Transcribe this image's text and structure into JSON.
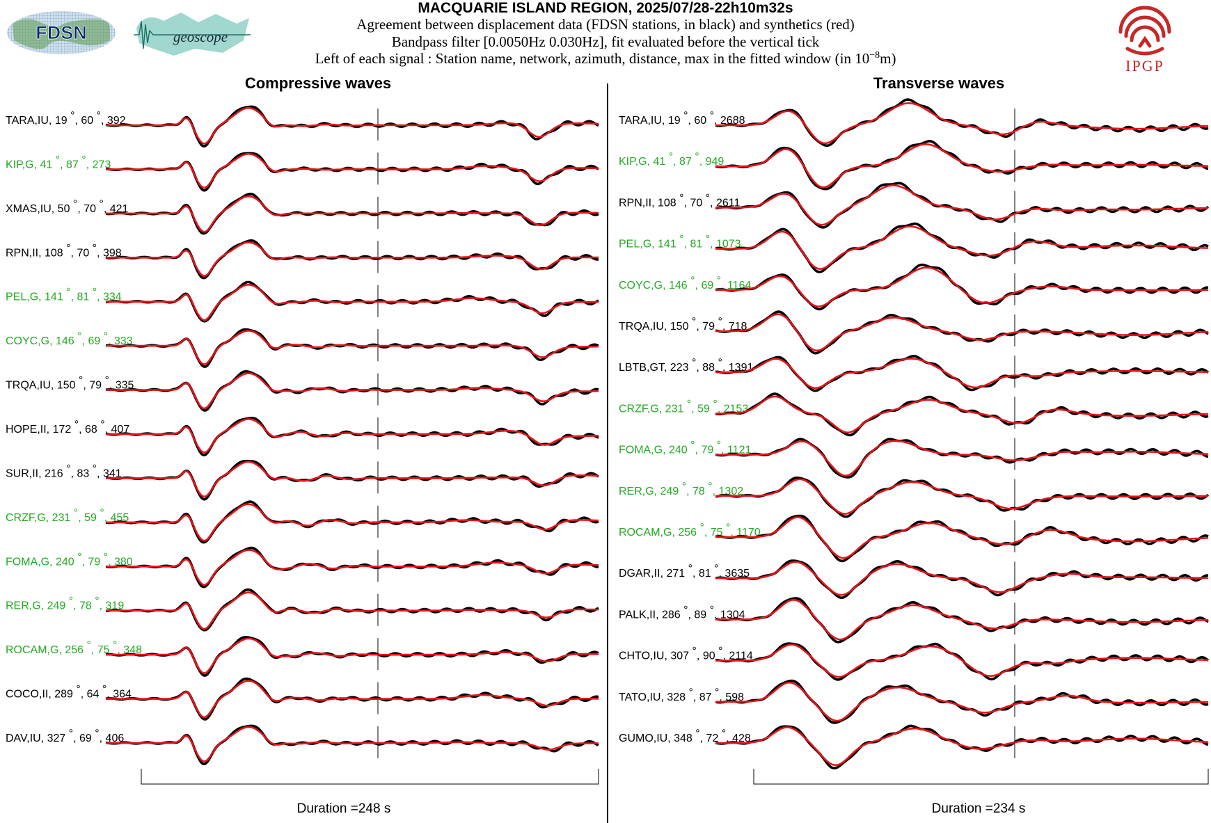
{
  "header": {
    "title": "MACQUARIE ISLAND REGION, 2025/07/28-22h10m32s",
    "line1": "Agreement between displacement data (FDSN stations, in black) and synthetics (red)",
    "line2": "Bandpass filter [0.0050Hz 0.030Hz], fit evaluated before the vertical tick",
    "line3_prefix": "Left of each signal : Station name, network, azimuth, distance, max in the fitted window (in 10",
    "line3_exp": "−8",
    "line3_suffix": "m)",
    "logos": {
      "fdsn_text": "FDSN",
      "geoscope_text": "geoscope",
      "ipgp_text": "IPGP"
    }
  },
  "colors": {
    "data": "#000000",
    "synthetic": "#e8141a",
    "green_station": "#22aa22",
    "ipgp": "#c62828"
  },
  "chart_data": [
    {
      "type": "line",
      "title": "Compressive waves",
      "duration_label": "Duration =248 s",
      "traces": [
        {
          "station": "TARA,IU",
          "azimuth": 19,
          "distance": 60,
          "max": 392,
          "green": false
        },
        {
          "station": "KIP,G",
          "azimuth": 41,
          "distance": 87,
          "max": 273,
          "green": true
        },
        {
          "station": "XMAS,IU",
          "azimuth": 50,
          "distance": 70,
          "max": 421,
          "green": false
        },
        {
          "station": "RPN,II",
          "azimuth": 108,
          "distance": 70,
          "max": 398,
          "green": false
        },
        {
          "station": "PEL,G",
          "azimuth": 141,
          "distance": 81,
          "max": 334,
          "green": true
        },
        {
          "station": "COYC,G",
          "azimuth": 146,
          "distance": 69,
          "max": 333,
          "green": true
        },
        {
          "station": "TRQA,IU",
          "azimuth": 150,
          "distance": 79,
          "max": 335,
          "green": false
        },
        {
          "station": "HOPE,II",
          "azimuth": 172,
          "distance": 68,
          "max": 407,
          "green": false
        },
        {
          "station": "SUR,II",
          "azimuth": 216,
          "distance": 83,
          "max": 341,
          "green": false
        },
        {
          "station": "CRZF,G",
          "azimuth": 231,
          "distance": 59,
          "max": 455,
          "green": true
        },
        {
          "station": "FOMA,G",
          "azimuth": 240,
          "distance": 79,
          "max": 380,
          "green": true
        },
        {
          "station": "RER,G",
          "azimuth": 249,
          "distance": 78,
          "max": 319,
          "green": true
        },
        {
          "station": "ROCAM,G",
          "azimuth": 256,
          "distance": 75,
          "max": 348,
          "green": true
        },
        {
          "station": "COCO,II",
          "azimuth": 289,
          "distance": 64,
          "max": 364,
          "green": false
        },
        {
          "station": "DAV,IU",
          "azimuth": 327,
          "distance": 69,
          "max": 406,
          "green": false
        }
      ]
    },
    {
      "type": "line",
      "title": "Transverse waves",
      "duration_label": "Duration =234 s",
      "traces": [
        {
          "station": "TARA,IU",
          "azimuth": 19,
          "distance": 60,
          "max": 2688,
          "green": false
        },
        {
          "station": "KIP,G",
          "azimuth": 41,
          "distance": 87,
          "max": 949,
          "green": true
        },
        {
          "station": "RPN,II",
          "azimuth": 108,
          "distance": 70,
          "max": 2611,
          "green": false
        },
        {
          "station": "PEL,G",
          "azimuth": 141,
          "distance": 81,
          "max": 1073,
          "green": true
        },
        {
          "station": "COYC,G",
          "azimuth": 146,
          "distance": 69,
          "max": 1164,
          "green": true
        },
        {
          "station": "TRQA,IU",
          "azimuth": 150,
          "distance": 79,
          "max": 718,
          "green": false
        },
        {
          "station": "LBTB,GT",
          "azimuth": 223,
          "distance": 88,
          "max": 1391,
          "green": false
        },
        {
          "station": "CRZF,G",
          "azimuth": 231,
          "distance": 59,
          "max": 2153,
          "green": true
        },
        {
          "station": "FOMA,G",
          "azimuth": 240,
          "distance": 79,
          "max": 1121,
          "green": true
        },
        {
          "station": "RER,G",
          "azimuth": 249,
          "distance": 78,
          "max": 1302,
          "green": true
        },
        {
          "station": "ROCAM,G",
          "azimuth": 256,
          "distance": 75,
          "max": 1170,
          "green": true
        },
        {
          "station": "DGAR,II",
          "azimuth": 271,
          "distance": 81,
          "max": 3635,
          "green": false
        },
        {
          "station": "PALK,II",
          "azimuth": 286,
          "distance": 89,
          "max": 1304,
          "green": false
        },
        {
          "station": "CHTO,IU",
          "azimuth": 307,
          "distance": 90,
          "max": 2114,
          "green": false
        },
        {
          "station": "TATO,IU",
          "azimuth": 328,
          "distance": 87,
          "max": 598,
          "green": false
        },
        {
          "station": "GUMO,IU",
          "azimuth": 348,
          "distance": 72,
          "max": 428,
          "green": false
        }
      ]
    }
  ]
}
